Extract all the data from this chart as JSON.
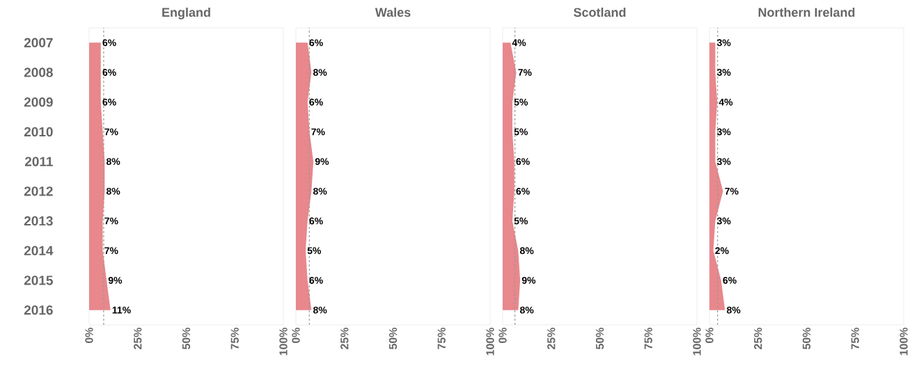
{
  "chart_data": [
    {
      "type": "area",
      "orientation": "horizontal",
      "title": "England",
      "categories": [
        "2007",
        "2008",
        "2009",
        "2010",
        "2011",
        "2012",
        "2013",
        "2014",
        "2015",
        "2016"
      ],
      "values": [
        6,
        6,
        6,
        7,
        8,
        8,
        7,
        7,
        9,
        11
      ],
      "value_labels": [
        "6%",
        "6%",
        "6%",
        "7%",
        "8%",
        "8%",
        "7%",
        "7%",
        "9%",
        "11%"
      ],
      "color": "#e8878c",
      "xlim": [
        0,
        100
      ],
      "xticks": [
        {
          "value": 0,
          "label": "0%"
        },
        {
          "value": 25,
          "label": "25%"
        },
        {
          "value": 50,
          "label": "50%"
        },
        {
          "value": 75,
          "label": "75%"
        },
        {
          "value": 100,
          "label": "100%"
        }
      ],
      "ref_lines": [
        {
          "axis": "x",
          "value": 7.5,
          "color": "#999999",
          "line_style": "dashed"
        }
      ]
    },
    {
      "type": "area",
      "orientation": "horizontal",
      "title": "Wales",
      "categories": [
        "2007",
        "2008",
        "2009",
        "2010",
        "2011",
        "2012",
        "2013",
        "2014",
        "2015",
        "2016"
      ],
      "values": [
        6,
        8,
        6,
        7,
        9,
        8,
        6,
        5,
        6,
        8
      ],
      "value_labels": [
        "6%",
        "8%",
        "6%",
        "7%",
        "9%",
        "8%",
        "6%",
        "5%",
        "6%",
        "8%"
      ],
      "color": "#e8878c",
      "xlim": [
        0,
        100
      ],
      "xticks": [
        {
          "value": 0,
          "label": "0%"
        },
        {
          "value": 25,
          "label": "25%"
        },
        {
          "value": 50,
          "label": "50%"
        },
        {
          "value": 75,
          "label": "75%"
        },
        {
          "value": 100,
          "label": "100%"
        }
      ],
      "ref_lines": [
        {
          "axis": "x",
          "value": 6.9,
          "color": "#999999",
          "line_style": "dashed"
        }
      ],
      "tick_labels": "x"
    },
    {
      "type": "area",
      "orientation": "horizontal",
      "title": "Scotland",
      "categories": [
        "2007",
        "2008",
        "2009",
        "2010",
        "2011",
        "2012",
        "2013",
        "2014",
        "2015",
        "2016"
      ],
      "values": [
        4,
        7,
        5,
        5,
        6,
        6,
        5,
        8,
        9,
        8
      ],
      "value_labels": [
        "4%",
        "7%",
        "5%",
        "5%",
        "6%",
        "6%",
        "5%",
        "8%",
        "9%",
        "8%"
      ],
      "color": "#e8878c",
      "xlim": [
        0,
        100
      ],
      "xticks": [
        {
          "value": 0,
          "label": "0%"
        },
        {
          "value": 25,
          "label": "25%"
        },
        {
          "value": 50,
          "label": "50%"
        },
        {
          "value": 75,
          "label": "75%"
        },
        {
          "value": 100,
          "label": "100%"
        }
      ],
      "ref_lines": [
        {
          "axis": "x",
          "value": 6.3,
          "color": "#999999",
          "line_style": "dashed"
        }
      ],
      "tick_labels": "x"
    },
    {
      "type": "area",
      "orientation": "horizontal",
      "title": "Northern Ireland",
      "categories": [
        "2007",
        "2008",
        "2009",
        "2010",
        "2011",
        "2012",
        "2013",
        "2014",
        "2015",
        "2016"
      ],
      "values": [
        3,
        3,
        4,
        3,
        3,
        7,
        3,
        2,
        6,
        8
      ],
      "value_labels": [
        "3%",
        "3%",
        "4%",
        "3%",
        "3%",
        "7%",
        "3%",
        "2%",
        "6%",
        "8%"
      ],
      "color": "#e8878c",
      "xlim": [
        0,
        100
      ],
      "xticks": [
        {
          "value": 0,
          "label": "0%"
        },
        {
          "value": 25,
          "label": "25%"
        },
        {
          "value": 50,
          "label": "50%"
        },
        {
          "value": 75,
          "label": "75%"
        },
        {
          "value": 100,
          "label": "100%"
        }
      ],
      "ref_lines": [
        {
          "axis": "x",
          "value": 4.2,
          "color": "#999999",
          "line_style": "dashed"
        }
      ],
      "tick_labels": "x"
    }
  ]
}
